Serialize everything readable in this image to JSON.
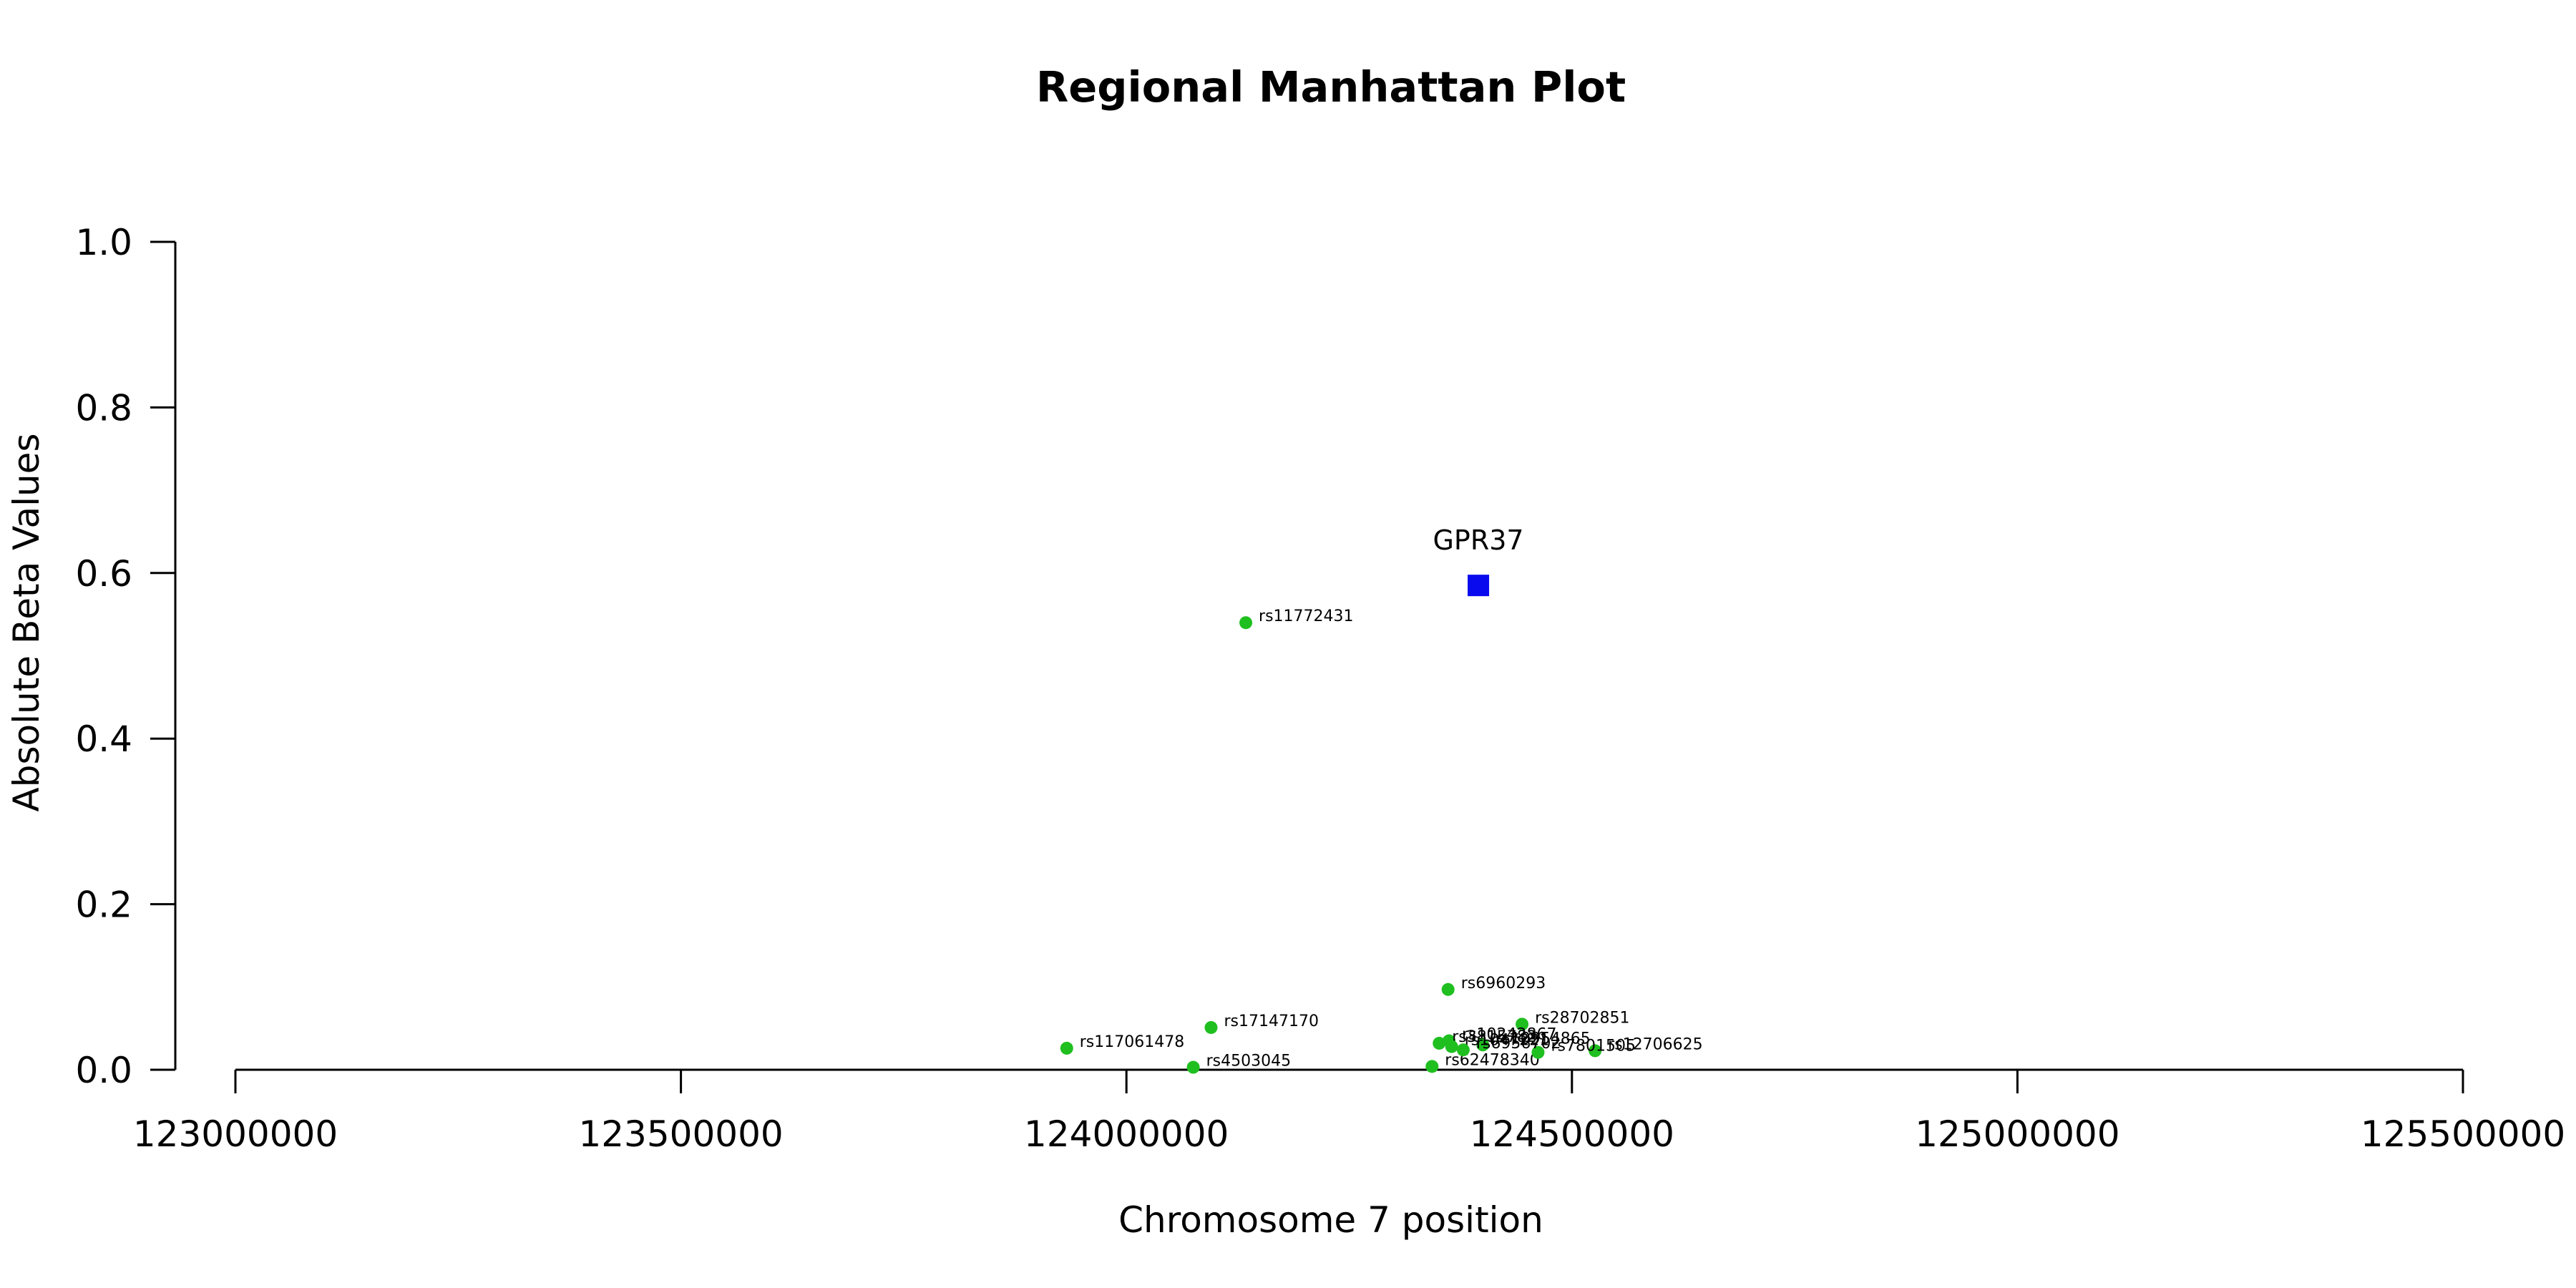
{
  "chart_data": {
    "type": "scatter",
    "title": "Regional Manhattan Plot",
    "xlabel": "Chromosome 7 position",
    "ylabel": "Absolute Beta Values",
    "xlim": [
      123000000,
      125500000
    ],
    "ylim": [
      0,
      1
    ],
    "x_ticks": [
      "123000000",
      "123500000",
      "124000000",
      "124500000",
      "125000000",
      "125500000"
    ],
    "y_ticks": [
      "0.0",
      "0.2",
      "0.4",
      "0.6",
      "0.8",
      "1.0"
    ],
    "grid": false,
    "colors": {
      "snp": "#1fbf1f",
      "gene": "#0a0aee"
    },
    "gene": {
      "name": "GPR37",
      "x": 124395000,
      "y": 0.585
    },
    "snps": [
      {
        "label": "rs11772431",
        "x": 124134000,
        "y": 0.54
      },
      {
        "label": "rs6960293",
        "x": 124361000,
        "y": 0.097
      },
      {
        "label": "rs28702851",
        "x": 124444000,
        "y": 0.055
      },
      {
        "label": "rs17147170",
        "x": 124095000,
        "y": 0.051
      },
      {
        "label": "rs117061478",
        "x": 123933000,
        "y": 0.026
      },
      {
        "label": "rs4503045",
        "x": 124075000,
        "y": 0.003
      },
      {
        "label": "rs62478340",
        "x": 124343000,
        "y": 0.004
      },
      {
        "label": "rs12706625",
        "x": 124526000,
        "y": 0.023
      },
      {
        "label": "rs10242867",
        "x": 124362000,
        "y": 0.035
      },
      {
        "label": "rs3815782",
        "x": 124351000,
        "y": 0.032
      },
      {
        "label": "rs10954865",
        "x": 124400000,
        "y": 0.03
      },
      {
        "label": "rs1047221",
        "x": 124365000,
        "y": 0.028
      },
      {
        "label": "rs7801505",
        "x": 124462000,
        "y": 0.021
      },
      {
        "label": "rs6956702",
        "x": 124378000,
        "y": 0.024
      }
    ]
  }
}
